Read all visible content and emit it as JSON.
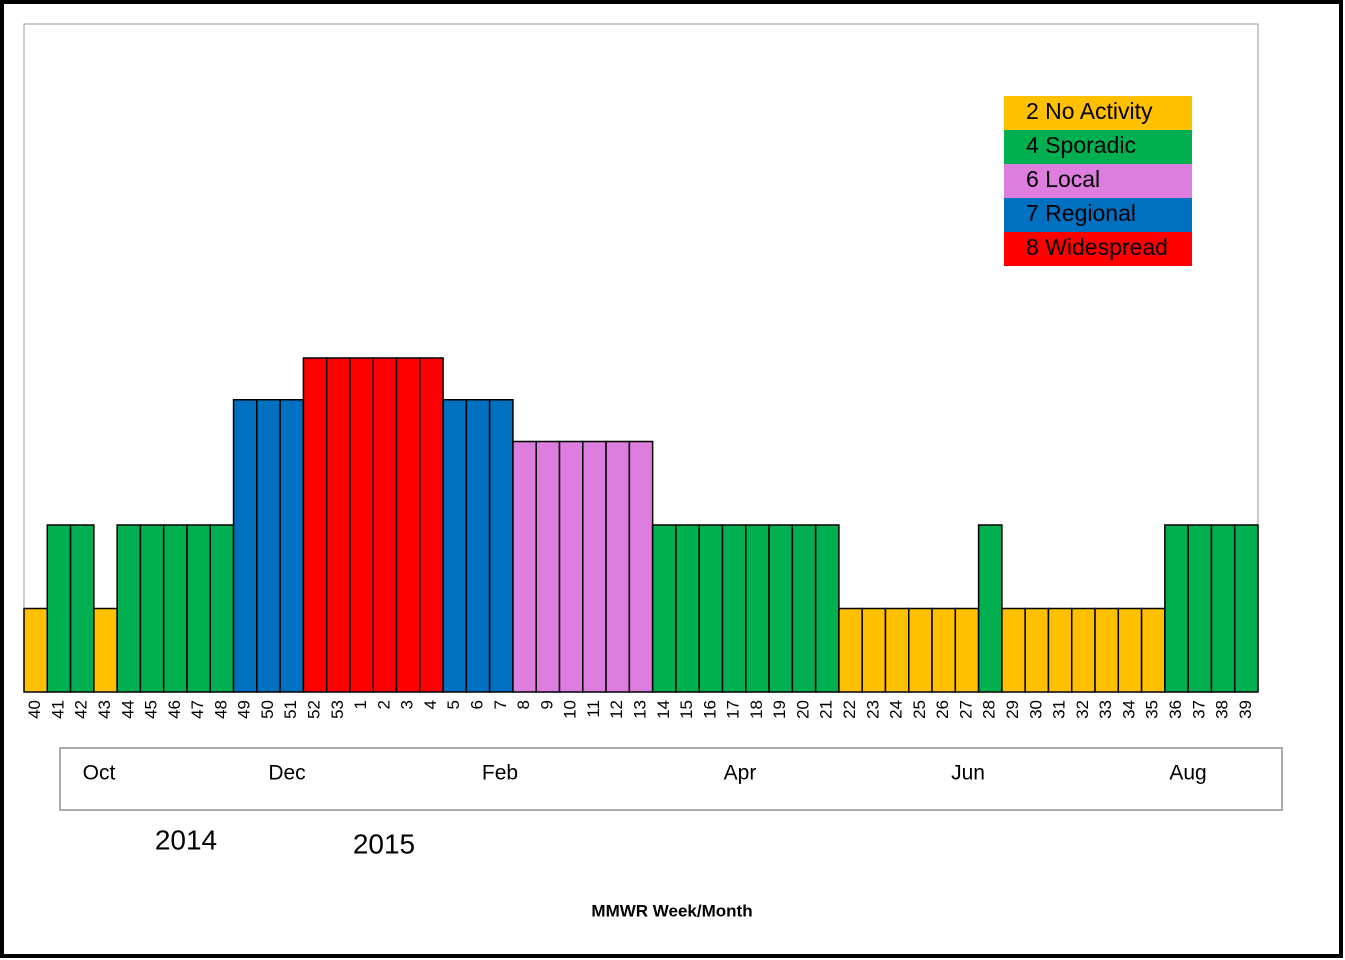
{
  "chart_data": {
    "type": "bar",
    "categories": [
      "40",
      "41",
      "42",
      "43",
      "44",
      "45",
      "46",
      "47",
      "48",
      "49",
      "50",
      "51",
      "52",
      "53",
      "1",
      "2",
      "3",
      "4",
      "5",
      "6",
      "7",
      "8",
      "9",
      "10",
      "11",
      "12",
      "13",
      "14",
      "15",
      "16",
      "17",
      "18",
      "19",
      "20",
      "21",
      "22",
      "23",
      "24",
      "25",
      "26",
      "27",
      "28",
      "29",
      "30",
      "31",
      "32",
      "33",
      "34",
      "35",
      "36",
      "37",
      "38",
      "39"
    ],
    "values": [
      2,
      4,
      4,
      2,
      4,
      4,
      4,
      4,
      4,
      7,
      7,
      7,
      8,
      8,
      8,
      8,
      8,
      8,
      7,
      7,
      7,
      6,
      6,
      6,
      6,
      6,
      6,
      4,
      4,
      4,
      4,
      4,
      4,
      4,
      4,
      2,
      2,
      2,
      2,
      2,
      2,
      4,
      2,
      2,
      2,
      2,
      2,
      2,
      2,
      4,
      4,
      4,
      4
    ],
    "levels": [
      {
        "label": "2 No Activity",
        "value": 2,
        "color": "#ffc000"
      },
      {
        "label": "4 Sporadic",
        "value": 4,
        "color": "#00b050"
      },
      {
        "label": "6 Local",
        "value": 6,
        "color": "#dd7ddd"
      },
      {
        "label": "7 Regional",
        "value": 7,
        "color": "#0070c0"
      },
      {
        "label": "8 Widespread",
        "value": 8,
        "color": "#ff0000"
      }
    ],
    "ylim": [
      0,
      16
    ],
    "months": [
      "Oct",
      "Dec",
      "Feb",
      "Apr",
      "Jun",
      "Aug"
    ],
    "years": [
      "2014",
      "2015"
    ],
    "x_label": "MMWR Week/Month"
  }
}
